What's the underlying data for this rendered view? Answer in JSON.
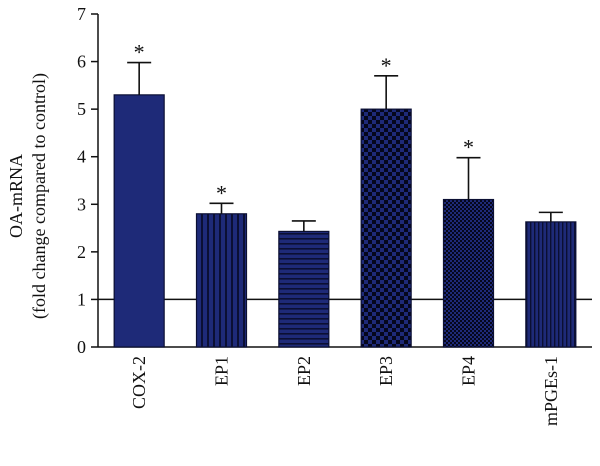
{
  "chart_data": {
    "type": "bar",
    "ylabel_line1": "OA-mRNA",
    "ylabel_line2": "(fold change compared to control)",
    "ylim": [
      0,
      7
    ],
    "yticks": [
      0,
      1,
      2,
      3,
      4,
      5,
      6,
      7
    ],
    "reference_line": 1,
    "bar_color": "#1e2a78",
    "categories": [
      "COX-2",
      "EP1",
      "EP2",
      "EP3",
      "EP4",
      "mPGEs-1"
    ],
    "values": [
      5.3,
      2.8,
      2.43,
      5.0,
      3.1,
      2.63
    ],
    "errors": [
      0.68,
      0.22,
      0.22,
      0.7,
      0.88,
      0.2
    ],
    "fill_patterns": [
      "solid",
      "vertical-lines",
      "horizontal-lines",
      "checker",
      "fine-checker",
      "fine-vertical-lines"
    ],
    "significance": [
      "*",
      "*",
      "",
      "*",
      "*",
      ""
    ]
  }
}
